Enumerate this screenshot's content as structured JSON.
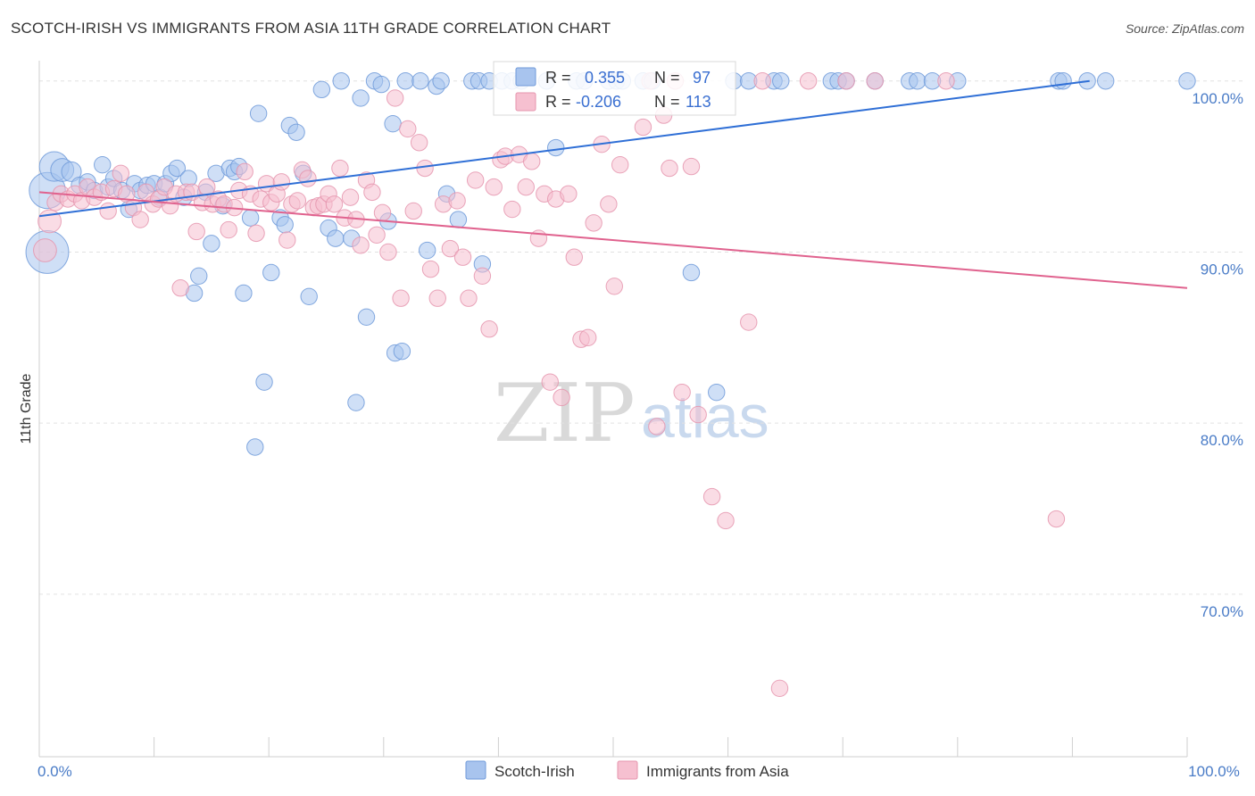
{
  "title": "SCOTCH-IRISH VS IMMIGRANTS FROM ASIA 11TH GRADE CORRELATION CHART",
  "source": "Source: ZipAtlas.com",
  "watermark": {
    "zip": "ZIP",
    "atlas": "atlas"
  },
  "colors": {
    "blue_fill": "#a8c4ee",
    "blue_stroke": "#6f9ad9",
    "blue_line": "#2f6fd6",
    "pink_fill": "#f6c0d0",
    "pink_stroke": "#e595ae",
    "pink_line": "#e0628e"
  },
  "stats_box": {
    "rows": [
      {
        "r_label": "R =",
        "r_value": "0.355",
        "n_label": "N =",
        "n_value": "97"
      },
      {
        "r_label": "R =",
        "r_value": "-0.206",
        "n_label": "N =",
        "n_value": "113"
      }
    ]
  },
  "chart_data": {
    "type": "scatter",
    "ylabel": "11th Grade",
    "xlim": [
      0,
      100
    ],
    "ylim": [
      60.5,
      101.5
    ],
    "y_ticks": [
      {
        "value": 100,
        "label": "100.0%"
      },
      {
        "value": 90,
        "label": "90.0%"
      },
      {
        "value": 80,
        "label": "80.0%"
      },
      {
        "value": 70,
        "label": "70.0%"
      }
    ],
    "x_tick_labels": [
      {
        "value": 0,
        "label": "0.0%"
      },
      {
        "value": 100,
        "label": "100.0%"
      }
    ],
    "x_minor_ticks": [
      0,
      10,
      20,
      30,
      40,
      50,
      60,
      70,
      80,
      90,
      100
    ],
    "legend_position": "bottom-center",
    "series": [
      {
        "name": "Scotch-Irish",
        "color": "blue",
        "trend": {
          "x0": 0,
          "y0": 92.1,
          "x1": 91.5,
          "y1": 100.0
        },
        "points": [
          [
            0.7,
            93.6,
            22
          ],
          [
            0.7,
            90.0,
            26
          ],
          [
            1.3,
            95.0,
            18
          ],
          [
            2.0,
            94.8,
            14
          ],
          [
            2.8,
            94.7,
            12
          ],
          [
            3.5,
            93.9,
            10
          ],
          [
            4.2,
            94.1,
            10
          ],
          [
            4.8,
            93.6,
            10
          ],
          [
            5.5,
            95.1,
            10
          ],
          [
            6.0,
            93.8,
            10
          ],
          [
            6.5,
            94.3,
            10
          ],
          [
            7.2,
            93.6,
            10
          ],
          [
            7.8,
            92.5,
            10
          ],
          [
            8.3,
            94.0,
            10
          ],
          [
            8.8,
            93.6,
            10
          ],
          [
            9.4,
            93.9,
            10
          ],
          [
            10.0,
            94.0,
            10
          ],
          [
            10.5,
            93.2,
            10
          ],
          [
            11.0,
            94.0,
            10
          ],
          [
            11.5,
            94.6,
            10
          ],
          [
            12.0,
            94.9,
            10
          ],
          [
            12.6,
            93.2,
            10
          ],
          [
            13.0,
            94.3,
            10
          ],
          [
            13.5,
            87.6,
            10
          ],
          [
            13.9,
            88.6,
            10
          ],
          [
            14.5,
            93.5,
            10
          ],
          [
            15.0,
            90.5,
            10
          ],
          [
            15.4,
            94.6,
            10
          ],
          [
            16.0,
            92.7,
            10
          ],
          [
            16.6,
            94.9,
            10
          ],
          [
            17.0,
            94.7,
            10
          ],
          [
            17.4,
            95.0,
            10
          ],
          [
            17.8,
            87.6,
            10
          ],
          [
            18.4,
            92.0,
            10
          ],
          [
            18.8,
            78.6,
            10
          ],
          [
            19.1,
            98.1,
            10
          ],
          [
            19.6,
            82.4,
            10
          ],
          [
            20.2,
            88.8,
            10
          ],
          [
            21.0,
            92.0,
            10
          ],
          [
            21.4,
            91.6,
            10
          ],
          [
            21.8,
            97.4,
            10
          ],
          [
            22.4,
            97.0,
            10
          ],
          [
            23.0,
            94.6,
            10
          ],
          [
            23.5,
            87.4,
            10
          ],
          [
            24.6,
            99.5,
            10
          ],
          [
            25.2,
            91.4,
            10
          ],
          [
            25.8,
            90.8,
            10
          ],
          [
            26.3,
            100.0,
            10
          ],
          [
            27.2,
            90.8,
            10
          ],
          [
            27.6,
            81.2,
            10
          ],
          [
            28.0,
            99.0,
            10
          ],
          [
            28.5,
            86.2,
            10
          ],
          [
            29.2,
            100.0,
            10
          ],
          [
            29.8,
            99.8,
            10
          ],
          [
            30.4,
            91.8,
            10
          ],
          [
            30.8,
            97.5,
            10
          ],
          [
            31.0,
            84.1,
            10
          ],
          [
            31.6,
            84.2,
            10
          ],
          [
            31.9,
            100.0,
            10
          ],
          [
            33.2,
            100.0,
            10
          ],
          [
            33.8,
            90.1,
            10
          ],
          [
            34.6,
            99.7,
            10
          ],
          [
            35.0,
            100.0,
            10
          ],
          [
            35.5,
            93.4,
            10
          ],
          [
            36.5,
            91.9,
            10
          ],
          [
            37.7,
            100.0,
            10
          ],
          [
            38.3,
            100.0,
            10
          ],
          [
            38.6,
            89.3,
            10
          ],
          [
            39.2,
            100.0,
            10
          ],
          [
            40.3,
            100.0,
            10
          ],
          [
            41.2,
            100.0,
            10
          ],
          [
            42.0,
            100.0,
            10
          ],
          [
            44.2,
            100.0,
            10
          ],
          [
            45.0,
            96.1,
            10
          ],
          [
            46.8,
            100.0,
            10
          ],
          [
            47.5,
            100.0,
            10
          ],
          [
            49.6,
            100.0,
            10
          ],
          [
            50.3,
            100.0,
            10
          ],
          [
            50.8,
            100.0,
            10
          ],
          [
            52.6,
            100.0,
            10
          ],
          [
            53.4,
            100.0,
            10
          ],
          [
            56.8,
            88.8,
            10
          ],
          [
            59.0,
            81.8,
            10
          ],
          [
            60.5,
            100.0,
            10
          ],
          [
            61.8,
            100.0,
            10
          ],
          [
            64.0,
            100.0,
            10
          ],
          [
            64.6,
            100.0,
            10
          ],
          [
            69.0,
            100.0,
            10
          ],
          [
            69.6,
            100.0,
            10
          ],
          [
            70.3,
            100.0,
            10
          ],
          [
            72.8,
            100.0,
            10
          ],
          [
            75.8,
            100.0,
            10
          ],
          [
            76.5,
            100.0,
            10
          ],
          [
            77.8,
            100.0,
            10
          ],
          [
            80.0,
            100.0,
            10
          ],
          [
            88.8,
            100.0,
            10
          ],
          [
            89.2,
            100.0,
            10
          ],
          [
            91.3,
            100.0,
            10
          ],
          [
            92.9,
            100.0,
            10
          ],
          [
            100.0,
            100.0,
            10
          ]
        ]
      },
      {
        "name": "Immigrants from Asia",
        "color": "pink",
        "trend": {
          "x0": 0,
          "y0": 93.5,
          "x1": 100,
          "y1": 87.9
        },
        "points": [
          [
            0.5,
            90.1,
            14
          ],
          [
            0.9,
            91.8,
            14
          ],
          [
            1.4,
            92.9,
            10
          ],
          [
            1.9,
            93.4,
            10
          ],
          [
            2.5,
            93.1,
            10
          ],
          [
            3.1,
            93.4,
            10
          ],
          [
            3.7,
            93.0,
            10
          ],
          [
            4.2,
            93.8,
            10
          ],
          [
            4.8,
            93.2,
            10
          ],
          [
            5.4,
            93.5,
            10
          ],
          [
            6.0,
            92.4,
            10
          ],
          [
            6.5,
            93.7,
            10
          ],
          [
            7.1,
            94.6,
            10
          ],
          [
            7.6,
            93.4,
            10
          ],
          [
            8.2,
            92.6,
            10
          ],
          [
            8.8,
            91.9,
            10
          ],
          [
            9.3,
            93.5,
            10
          ],
          [
            9.9,
            92.8,
            10
          ],
          [
            10.4,
            93.1,
            10
          ],
          [
            10.9,
            93.8,
            10
          ],
          [
            11.4,
            92.7,
            10
          ],
          [
            11.9,
            93.4,
            10
          ],
          [
            12.3,
            87.9,
            10
          ],
          [
            12.8,
            93.5,
            10
          ],
          [
            13.3,
            93.5,
            10
          ],
          [
            13.7,
            91.2,
            10
          ],
          [
            14.2,
            92.9,
            10
          ],
          [
            14.6,
            93.8,
            10
          ],
          [
            15.1,
            92.8,
            10
          ],
          [
            15.6,
            93.1,
            10
          ],
          [
            16.1,
            92.8,
            10
          ],
          [
            16.5,
            91.3,
            10
          ],
          [
            17.0,
            92.6,
            10
          ],
          [
            17.4,
            93.6,
            10
          ],
          [
            17.9,
            94.7,
            10
          ],
          [
            18.4,
            93.4,
            10
          ],
          [
            18.9,
            91.1,
            10
          ],
          [
            19.3,
            93.1,
            10
          ],
          [
            19.8,
            94.0,
            10
          ],
          [
            20.2,
            92.9,
            10
          ],
          [
            20.7,
            93.4,
            10
          ],
          [
            21.1,
            94.1,
            10
          ],
          [
            21.6,
            90.7,
            10
          ],
          [
            22.0,
            92.8,
            10
          ],
          [
            22.5,
            93.0,
            10
          ],
          [
            22.9,
            94.8,
            10
          ],
          [
            23.4,
            94.3,
            10
          ],
          [
            23.9,
            92.6,
            10
          ],
          [
            24.3,
            92.7,
            10
          ],
          [
            24.8,
            92.8,
            10
          ],
          [
            25.2,
            93.4,
            10
          ],
          [
            25.7,
            92.8,
            10
          ],
          [
            26.2,
            94.9,
            10
          ],
          [
            26.6,
            92.0,
            10
          ],
          [
            27.1,
            93.2,
            10
          ],
          [
            27.6,
            91.9,
            10
          ],
          [
            28.0,
            90.4,
            10
          ],
          [
            28.5,
            94.2,
            10
          ],
          [
            29.0,
            93.5,
            10
          ],
          [
            29.4,
            91.0,
            10
          ],
          [
            29.9,
            92.3,
            10
          ],
          [
            30.4,
            90.0,
            10
          ],
          [
            31.0,
            99.0,
            10
          ],
          [
            31.5,
            87.3,
            10
          ],
          [
            32.1,
            97.2,
            10
          ],
          [
            32.6,
            92.4,
            10
          ],
          [
            33.1,
            96.4,
            10
          ],
          [
            33.6,
            94.9,
            10
          ],
          [
            34.1,
            89.0,
            10
          ],
          [
            34.7,
            87.3,
            10
          ],
          [
            35.2,
            92.8,
            10
          ],
          [
            35.8,
            90.2,
            10
          ],
          [
            36.4,
            93.0,
            10
          ],
          [
            36.9,
            89.7,
            10
          ],
          [
            37.4,
            87.3,
            10
          ],
          [
            38.0,
            94.2,
            10
          ],
          [
            38.6,
            88.6,
            10
          ],
          [
            39.2,
            85.5,
            10
          ],
          [
            39.6,
            93.8,
            10
          ],
          [
            40.2,
            95.4,
            10
          ],
          [
            40.6,
            95.6,
            10
          ],
          [
            41.2,
            92.5,
            10
          ],
          [
            41.8,
            95.7,
            10
          ],
          [
            42.4,
            93.8,
            10
          ],
          [
            42.9,
            95.3,
            10
          ],
          [
            43.5,
            90.8,
            10
          ],
          [
            44.0,
            93.4,
            10
          ],
          [
            44.5,
            82.4,
            10
          ],
          [
            45.0,
            93.1,
            10
          ],
          [
            45.5,
            81.5,
            10
          ],
          [
            46.1,
            93.4,
            10
          ],
          [
            46.6,
            89.7,
            10
          ],
          [
            47.2,
            84.9,
            10
          ],
          [
            47.8,
            85.0,
            10
          ],
          [
            48.3,
            91.7,
            10
          ],
          [
            49.0,
            96.3,
            10
          ],
          [
            49.6,
            92.8,
            10
          ],
          [
            50.1,
            88.0,
            10
          ],
          [
            50.6,
            95.1,
            10
          ],
          [
            52.6,
            97.3,
            10
          ],
          [
            53.2,
            100.0,
            10
          ],
          [
            53.8,
            79.8,
            10
          ],
          [
            54.4,
            98.0,
            10
          ],
          [
            54.9,
            94.9,
            10
          ],
          [
            55.4,
            100.0,
            10
          ],
          [
            56.0,
            81.8,
            10
          ],
          [
            56.8,
            95.0,
            10
          ],
          [
            57.4,
            80.5,
            10
          ],
          [
            58.6,
            75.7,
            10
          ],
          [
            59.8,
            74.3,
            10
          ],
          [
            61.8,
            85.9,
            10
          ],
          [
            63.0,
            100.0,
            10
          ],
          [
            64.5,
            64.5,
            10
          ],
          [
            67.0,
            100.0,
            10
          ],
          [
            70.3,
            100.0,
            10
          ],
          [
            72.8,
            100.0,
            10
          ],
          [
            79.0,
            100.0,
            10
          ],
          [
            88.6,
            74.4,
            10
          ]
        ]
      }
    ]
  }
}
